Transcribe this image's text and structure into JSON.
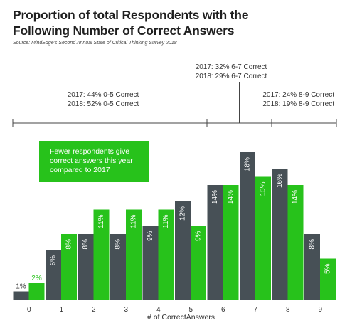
{
  "title": "Proportion of total Respondents with the Following Number of Correct Answers",
  "source": "Source: MindEdge's Second Annual State of Critical Thinking Survey 2018",
  "chart_data": {
    "type": "bar",
    "categories": [
      "0",
      "1",
      "2",
      "3",
      "4",
      "5",
      "6",
      "7",
      "8",
      "9"
    ],
    "series": [
      {
        "name": "2017",
        "color": "#475056",
        "values": [
          1,
          6,
          8,
          8,
          9,
          12,
          14,
          18,
          16,
          8
        ]
      },
      {
        "name": "2018",
        "color": "#27c21b",
        "values": [
          2,
          8,
          11,
          11,
          11,
          9,
          14,
          15,
          14,
          5
        ]
      }
    ],
    "value_labels": {
      "2017": [
        "1%",
        "6%",
        "8%",
        "8%",
        "9%",
        "12%",
        "14%",
        "18%",
        "16%",
        "8%"
      ],
      "2018": [
        "2%",
        "8%",
        "11%",
        "11%",
        "11%",
        "9%",
        "14%",
        "15%",
        "14%",
        "5%"
      ]
    },
    "xlabel": "# of CorrectAnswers",
    "ylabel": "",
    "callout": "Fewer respondents give correct answers this year compared to 2017",
    "brackets": [
      {
        "lines": [
          "2017: 44% 0-5 Correct",
          "2018: 52% 0-5 Correct"
        ]
      },
      {
        "lines": [
          "2017: 32% 6-7 Correct",
          "2018: 29% 6-7 Correct"
        ]
      },
      {
        "lines": [
          "2017: 24% 8-9 Correct",
          "2018: 19% 8-9 Correct"
        ]
      }
    ]
  }
}
